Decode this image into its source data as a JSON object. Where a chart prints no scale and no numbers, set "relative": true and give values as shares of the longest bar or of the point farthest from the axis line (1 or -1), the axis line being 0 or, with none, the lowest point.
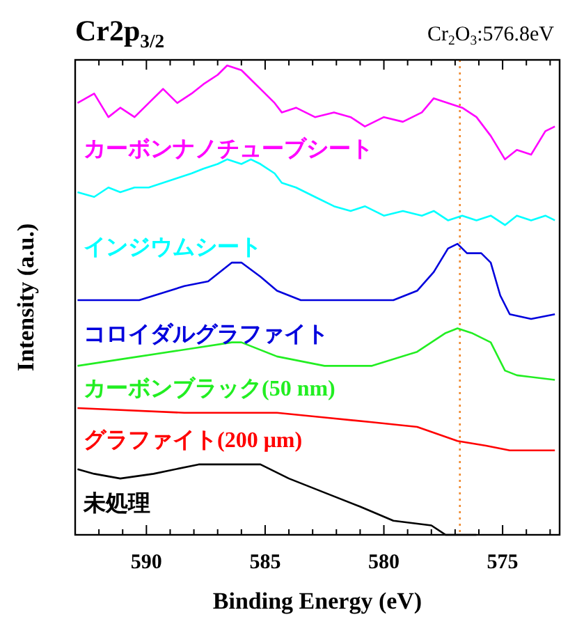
{
  "chart_data": {
    "type": "line",
    "title": "Cr2p$_{3/2}$",
    "xlabel": "Binding Energy (eV)",
    "ylabel": "Intensity (a.u.)",
    "relative": true,
    "grid": false,
    "xlim": [
      593,
      572.6
    ],
    "xticks": [
      {
        "value": 592,
        "label": null
      },
      {
        "value": 591,
        "label": null
      },
      590,
      {
        "value": 589,
        "label": null
      },
      {
        "value": 588,
        "label": null
      },
      {
        "value": 587,
        "label": null
      },
      {
        "value": 586,
        "label": null
      },
      585,
      {
        "value": 584,
        "label": null
      },
      {
        "value": 583,
        "label": null
      },
      {
        "value": 582,
        "label": null
      },
      {
        "value": 581,
        "label": null
      },
      580,
      {
        "value": 579,
        "label": null
      },
      {
        "value": 578,
        "label": null
      },
      {
        "value": 577,
        "label": null
      },
      {
        "value": 576,
        "label": null
      },
      575,
      {
        "value": 574,
        "label": null
      },
      {
        "value": 573,
        "label": null
      }
    ],
    "ref_lines": [
      {
        "axis": "x",
        "value": 576.8,
        "label": "Cr$_{2}$O$_{3}$:576.8eV",
        "color": "#f08a30",
        "line_style": "dotted"
      }
    ],
    "series": [
      {
        "name": "カーボンナノチューブシート",
        "color": "#ff00ff",
        "x": [
          592.9,
          592.2,
          591.6,
          591.1,
          590.5,
          589.9,
          589.3,
          588.7,
          588.1,
          587.6,
          587.0,
          586.6,
          586.0,
          585.6,
          585.2,
          584.6,
          584.3,
          583.7,
          582.9,
          582.1,
          581.4,
          580.8,
          580.0,
          579.2,
          578.4,
          577.9,
          577.3,
          576.7,
          576.1,
          575.5,
          574.9,
          574.4,
          573.8,
          573.2,
          572.8
        ],
        "values": [
          0.92,
          0.94,
          0.89,
          0.91,
          0.89,
          0.92,
          0.95,
          0.92,
          0.94,
          0.96,
          0.98,
          1.0,
          0.99,
          0.97,
          0.95,
          0.92,
          0.9,
          0.91,
          0.89,
          0.9,
          0.89,
          0.87,
          0.89,
          0.88,
          0.9,
          0.93,
          0.92,
          0.91,
          0.89,
          0.85,
          0.8,
          0.82,
          0.81,
          0.86,
          0.87
        ]
      },
      {
        "name": "インジウムシート",
        "color": "#00ffff",
        "x": [
          592.9,
          592.2,
          591.6,
          591.1,
          590.5,
          589.9,
          589.3,
          588.7,
          588.1,
          587.6,
          587.0,
          586.6,
          586.0,
          585.6,
          585.2,
          584.6,
          584.3,
          583.7,
          582.9,
          582.1,
          581.4,
          580.8,
          580.0,
          579.2,
          578.4,
          577.9,
          577.3,
          576.7,
          576.1,
          575.5,
          574.9,
          574.4,
          573.8,
          573.2,
          572.8
        ],
        "values": [
          0.73,
          0.72,
          0.74,
          0.73,
          0.74,
          0.74,
          0.75,
          0.76,
          0.77,
          0.78,
          0.79,
          0.8,
          0.79,
          0.8,
          0.79,
          0.77,
          0.75,
          0.74,
          0.72,
          0.7,
          0.69,
          0.7,
          0.68,
          0.69,
          0.68,
          0.69,
          0.67,
          0.68,
          0.67,
          0.68,
          0.66,
          0.68,
          0.67,
          0.68,
          0.67
        ]
      },
      {
        "name": "コロイダルグラファイト",
        "color": "#0000dd",
        "x": [
          592.9,
          590.3,
          588.4,
          587.4,
          586.4,
          586.0,
          585.2,
          584.5,
          583.5,
          581.5,
          579.6,
          578.6,
          577.9,
          577.3,
          576.9,
          576.5,
          575.9,
          575.5,
          575.1,
          574.7,
          573.8,
          572.8
        ],
        "values": [
          0.5,
          0.5,
          0.53,
          0.54,
          0.58,
          0.58,
          0.55,
          0.52,
          0.5,
          0.5,
          0.5,
          0.52,
          0.56,
          0.61,
          0.62,
          0.6,
          0.6,
          0.58,
          0.51,
          0.47,
          0.46,
          0.47
        ]
      },
      {
        "name": "カーボンブラック(50 nm)",
        "color": "#22ee22",
        "x": [
          592.9,
          590.3,
          586.4,
          586.0,
          584.5,
          582.5,
          580.5,
          578.6,
          577.4,
          576.9,
          576.3,
          575.5,
          574.9,
          574.4,
          572.8
        ],
        "values": [
          0.36,
          0.38,
          0.41,
          0.41,
          0.38,
          0.36,
          0.36,
          0.39,
          0.43,
          0.44,
          0.43,
          0.41,
          0.35,
          0.34,
          0.33
        ]
      },
      {
        "name": "グラファイト(200 μm)",
        "color": "#ff0000",
        "x": [
          592.9,
          588.4,
          584.5,
          582.5,
          580.5,
          578.6,
          576.9,
          575.7,
          574.7,
          572.8
        ],
        "values": [
          0.27,
          0.26,
          0.26,
          0.25,
          0.24,
          0.23,
          0.2,
          0.19,
          0.18,
          0.18
        ]
      },
      {
        "name": "未処理",
        "color": "#000000",
        "x": [
          592.9,
          592.2,
          591.1,
          589.7,
          587.8,
          585.8,
          585.2,
          584.0,
          582.5,
          581.0,
          579.6,
          578.0,
          577.4,
          576.1
        ],
        "values": [
          0.14,
          0.13,
          0.12,
          0.13,
          0.15,
          0.15,
          0.15,
          0.12,
          0.09,
          0.06,
          0.03,
          0.02,
          0.0,
          0.0
        ]
      }
    ]
  }
}
